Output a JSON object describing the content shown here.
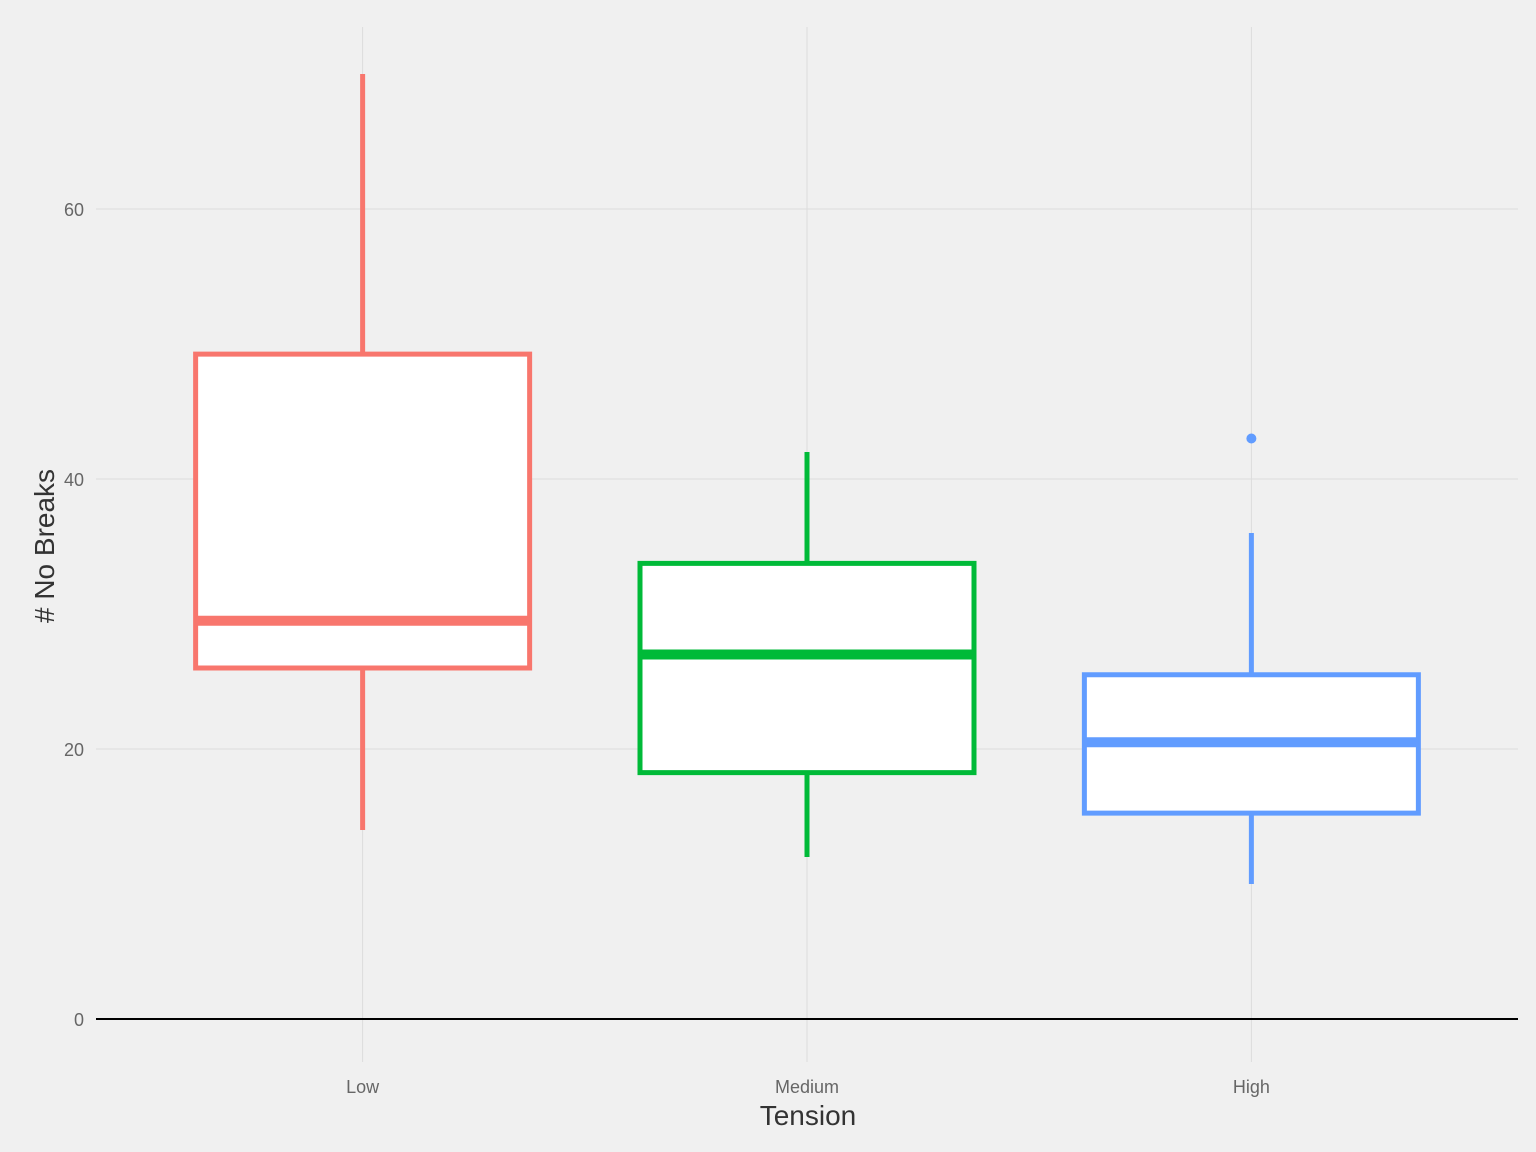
{
  "chart_data": {
    "type": "boxplot",
    "title": "",
    "xlabel": "Tension",
    "ylabel": "# No Breaks",
    "categories": [
      "Low",
      "Medium",
      "High"
    ],
    "yticks": [
      0,
      20,
      40,
      60
    ],
    "ylim": [
      0,
      70
    ],
    "grid": true,
    "legend": "none",
    "boxes": [
      {
        "category": "Low",
        "color": "#F8766D",
        "min": 14,
        "q1": 26,
        "median": 29.5,
        "q3": 49.25,
        "max": 70,
        "outliers": []
      },
      {
        "category": "Medium",
        "color": "#00BA38",
        "min": 12,
        "q1": 18.25,
        "median": 27,
        "q3": 33.75,
        "max": 42,
        "outliers": []
      },
      {
        "category": "High",
        "color": "#619CFF",
        "min": 10,
        "q1": 15.25,
        "median": 20.5,
        "q3": 25.5,
        "max": 36,
        "outliers": [
          43
        ]
      }
    ]
  }
}
